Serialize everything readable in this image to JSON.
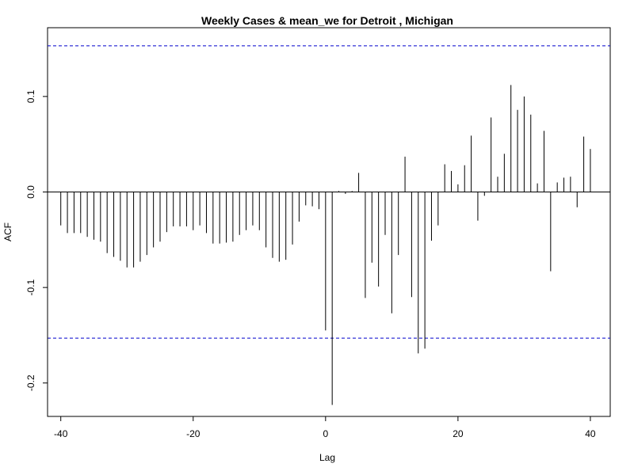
{
  "chart_data": {
    "type": "bar",
    "title": "Weekly Cases & mean_we for Detroit , Michigan",
    "xlabel": "Lag",
    "ylabel": "ACF",
    "xlim": [
      -42,
      43
    ],
    "ylim": [
      -0.235,
      0.172
    ],
    "xticks": [
      -40,
      -20,
      0,
      20,
      40
    ],
    "yticks": [
      -0.2,
      -0.1,
      0.0,
      0.1
    ],
    "ytick_labels": [
      "-0.2",
      "-0.1",
      "0.0",
      "0.1"
    ],
    "confidence_bound": 0.153,
    "confidence_color": "#0000cc",
    "bar_color": "#000000",
    "grid": false,
    "x": [
      -40,
      -39,
      -38,
      -37,
      -36,
      -35,
      -34,
      -33,
      -32,
      -31,
      -30,
      -29,
      -28,
      -27,
      -26,
      -25,
      -24,
      -23,
      -22,
      -21,
      -20,
      -19,
      -18,
      -17,
      -16,
      -15,
      -14,
      -13,
      -12,
      -11,
      -10,
      -9,
      -8,
      -7,
      -6,
      -5,
      -4,
      -3,
      -2,
      -1,
      0,
      1,
      2,
      3,
      4,
      5,
      6,
      7,
      8,
      9,
      10,
      11,
      12,
      13,
      14,
      15,
      16,
      17,
      18,
      19,
      20,
      21,
      22,
      23,
      24,
      25,
      26,
      27,
      28,
      29,
      30,
      31,
      32,
      33,
      34,
      35,
      36,
      37,
      38,
      39,
      40
    ],
    "values": [
      -0.035,
      -0.043,
      -0.043,
      -0.043,
      -0.047,
      -0.05,
      -0.052,
      -0.064,
      -0.068,
      -0.072,
      -0.079,
      -0.079,
      -0.073,
      -0.066,
      -0.058,
      -0.052,
      -0.042,
      -0.036,
      -0.036,
      -0.036,
      -0.04,
      -0.035,
      -0.043,
      -0.054,
      -0.054,
      -0.053,
      -0.052,
      -0.045,
      -0.04,
      -0.035,
      -0.04,
      -0.058,
      -0.069,
      -0.073,
      -0.071,
      -0.055,
      -0.031,
      -0.014,
      -0.015,
      -0.018,
      -0.145,
      -0.223,
      0.001,
      -0.002,
      0.001,
      0.02,
      -0.111,
      -0.074,
      -0.099,
      -0.045,
      -0.127,
      -0.066,
      0.037,
      -0.11,
      -0.169,
      -0.164,
      -0.051,
      -0.035,
      0.029,
      0.022,
      0.008,
      0.028,
      0.059,
      -0.03,
      -0.004,
      0.078,
      0.016,
      0.04,
      0.112,
      0.086,
      0.1,
      0.081,
      0.009,
      0.064,
      -0.083,
      0.01,
      0.015,
      0.016,
      -0.016,
      0.058,
      0.045
    ]
  }
}
